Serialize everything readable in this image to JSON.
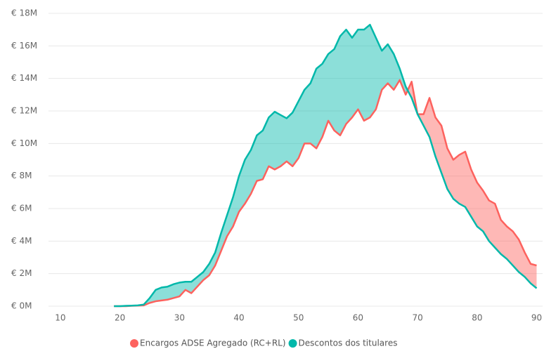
{
  "chart_data": {
    "type": "line",
    "fill_between": true,
    "x": [
      19,
      20,
      21,
      22,
      23,
      24,
      25,
      26,
      27,
      28,
      29,
      30,
      31,
      32,
      33,
      34,
      35,
      36,
      37,
      38,
      39,
      40,
      41,
      42,
      43,
      44,
      45,
      46,
      47,
      48,
      49,
      50,
      51,
      52,
      53,
      54,
      55,
      56,
      57,
      58,
      59,
      60,
      61,
      62,
      63,
      64,
      65,
      66,
      67,
      68,
      69,
      70,
      71,
      72,
      73,
      74,
      75,
      76,
      77,
      78,
      79,
      80,
      81,
      82,
      83,
      84,
      85,
      86,
      87,
      88,
      89,
      90
    ],
    "series": [
      {
        "name": "Encargos ADSE Agregado (RC+RL)",
        "color": "#fd625e",
        "values": [
          0,
          0,
          0,
          20000,
          30000,
          50000,
          200000,
          300000,
          350000,
          400000,
          500000,
          600000,
          1000000,
          800000,
          1200000,
          1600000,
          1900000,
          2500000,
          3400000,
          4300000,
          4900000,
          5800000,
          6300000,
          6900000,
          7700000,
          7800000,
          8600000,
          8400000,
          8600000,
          8900000,
          8600000,
          9100000,
          10000000,
          10000000,
          9700000,
          10400000,
          11400000,
          10800000,
          10500000,
          11200000,
          11600000,
          12100000,
          11400000,
          11600000,
          12100000,
          13300000,
          13700000,
          13300000,
          13900000,
          13000000,
          13800000,
          11800000,
          11800000,
          12800000,
          11600000,
          11100000,
          9700000,
          9000000,
          9300000,
          9500000,
          8400000,
          7600000,
          7100000,
          6500000,
          6300000,
          5300000,
          4900000,
          4600000,
          4100000,
          3300000,
          2600000,
          2500000
        ]
      },
      {
        "name": "Descontos dos titulares",
        "color": "#01b8aa",
        "values": [
          0,
          0,
          20000,
          30000,
          50000,
          100000,
          500000,
          1000000,
          1150000,
          1200000,
          1350000,
          1450000,
          1500000,
          1500000,
          1800000,
          2100000,
          2600000,
          3300000,
          4500000,
          5600000,
          6700000,
          8000000,
          9000000,
          9600000,
          10500000,
          10800000,
          11600000,
          11950000,
          11750000,
          11550000,
          11900000,
          12600000,
          13300000,
          13700000,
          14600000,
          14900000,
          15500000,
          15800000,
          16600000,
          17000000,
          16500000,
          17000000,
          17000000,
          17300000,
          16500000,
          15700000,
          16100000,
          15500000,
          14600000,
          13500000,
          12800000,
          11800000,
          11100000,
          10400000,
          9200000,
          8200000,
          7200000,
          6600000,
          6300000,
          6100000,
          5500000,
          4900000,
          4600000,
          4000000,
          3600000,
          3200000,
          2900000,
          2500000,
          2100000,
          1800000,
          1400000,
          1100000
        ]
      }
    ],
    "xlim": [
      8,
      91
    ],
    "xticks": [
      10,
      20,
      30,
      40,
      50,
      60,
      70,
      80,
      90
    ],
    "ylim": [
      0,
      18000000
    ],
    "yticks": [
      {
        "value": 0,
        "label": "€ 0M"
      },
      {
        "value": 2000000,
        "label": "€ 2M"
      },
      {
        "value": 4000000,
        "label": "€ 4M"
      },
      {
        "value": 6000000,
        "label": "€ 6M"
      },
      {
        "value": 8000000,
        "label": "€ 8M"
      },
      {
        "value": 10000000,
        "label": "€ 10M"
      },
      {
        "value": 12000000,
        "label": "€ 12M"
      },
      {
        "value": 14000000,
        "label": "€ 14M"
      },
      {
        "value": 16000000,
        "label": "€ 16M"
      },
      {
        "value": 18000000,
        "label": "€ 18M"
      }
    ],
    "grid": true,
    "legend": "bottom"
  }
}
